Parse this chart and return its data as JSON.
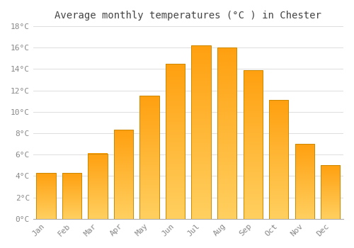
{
  "title": "Average monthly temperatures (°C ) in Chester",
  "months": [
    "Jan",
    "Feb",
    "Mar",
    "Apr",
    "May",
    "Jun",
    "Jul",
    "Aug",
    "Sep",
    "Oct",
    "Nov",
    "Dec"
  ],
  "temperatures": [
    4.3,
    4.3,
    6.1,
    8.3,
    11.5,
    14.5,
    16.2,
    16.0,
    13.9,
    11.1,
    7.0,
    5.0
  ],
  "bar_color_bottom": "#FFD060",
  "bar_color_top": "#FFA010",
  "bar_edge_color": "#CC8800",
  "background_color": "#ffffff",
  "plot_bg_color": "#ffffff",
  "ylim": [
    0,
    18
  ],
  "yticks": [
    0,
    2,
    4,
    6,
    8,
    10,
    12,
    14,
    16,
    18
  ],
  "ytick_labels": [
    "0°C",
    "2°C",
    "4°C",
    "6°C",
    "8°C",
    "10°C",
    "12°C",
    "14°C",
    "16°C",
    "18°C"
  ],
  "title_fontsize": 10,
  "tick_fontsize": 8,
  "grid_color": "#dddddd",
  "bar_width": 0.75
}
